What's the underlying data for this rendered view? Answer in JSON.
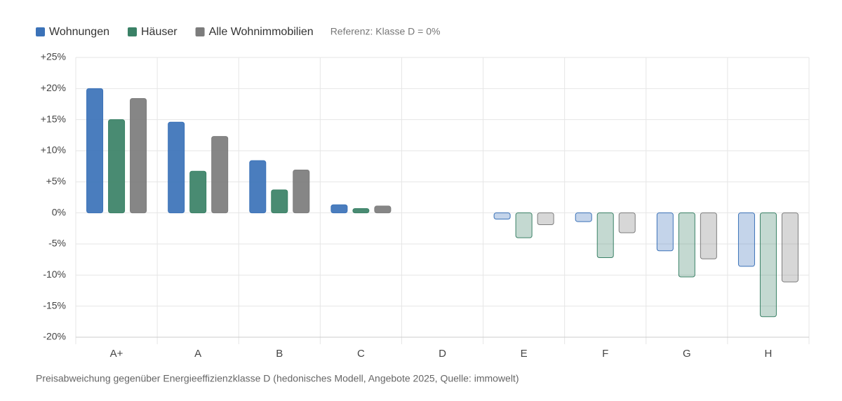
{
  "chart_data": {
    "type": "bar",
    "annotation": "Referenz: Klasse D = 0%",
    "caption": "Preisabweichung gegenüber Energieeffizienzklasse D (hedonisches Modell, Angebote 2025, Quelle: immowelt)",
    "categories": [
      "A+",
      "A",
      "B",
      "C",
      "D",
      "E",
      "F",
      "G",
      "H"
    ],
    "series": [
      {
        "name": "Wohnungen",
        "color": "#3b72b8",
        "values": [
          20.0,
          14.6,
          8.4,
          1.3,
          0,
          -1.0,
          -1.4,
          -6.1,
          -8.6
        ]
      },
      {
        "name": "Häuser",
        "color": "#3a8166",
        "values": [
          15.0,
          6.7,
          3.7,
          0.7,
          0,
          -4.0,
          -7.2,
          -10.3,
          -16.7
        ]
      },
      {
        "name": "Alle Wohnimmobilien",
        "color": "#7c7c7c",
        "values": [
          18.4,
          12.3,
          6.9,
          1.1,
          0,
          -1.9,
          -3.2,
          -7.4,
          -11.1
        ]
      }
    ],
    "ylim": [
      -20,
      25
    ],
    "yticks": [
      {
        "value": -20,
        "label": "-20%"
      },
      {
        "value": -15,
        "label": "-15%"
      },
      {
        "value": -10,
        "label": "-10%"
      },
      {
        "value": -5,
        "label": "-5%"
      },
      {
        "value": 0,
        "label": "0%"
      },
      {
        "value": 5,
        "label": "+5%"
      },
      {
        "value": 10,
        "label": "+10%"
      },
      {
        "value": 15,
        "label": "+15%"
      },
      {
        "value": 20,
        "label": "+20%"
      },
      {
        "value": 25,
        "label": "+25%"
      }
    ],
    "grid": true,
    "legend": "top-left"
  }
}
